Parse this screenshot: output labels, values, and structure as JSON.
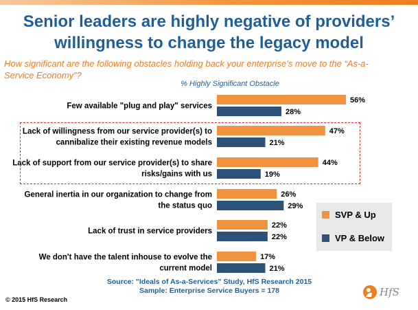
{
  "header": {
    "title_line1": "Senior leaders are highly negative of providers’",
    "title_line2": "willingness to change the legacy model",
    "question_line1": "How significant are the following obstacles holding back your enterprise’s move to the “As-a-",
    "question_line2": "Service Economy”?"
  },
  "chart_data": {
    "type": "bar",
    "orientation": "horizontal",
    "axis_title": "% Highly Significant Obstacle",
    "categories": [
      [
        "Few available \"plug and play\" services"
      ],
      [
        "Lack of willingness from our service provider(s) to",
        "cannibalize their existing revenue models"
      ],
      [
        "Lack of support from our service provider(s) to share",
        "risks/gains with us"
      ],
      [
        "General inertia in our organization to change from",
        "the status quo"
      ],
      [
        "Lack of trust in service providers"
      ],
      [
        "We don't have the talent inhouse to evolve the",
        "current model"
      ]
    ],
    "series": [
      {
        "name": "SVP & Up",
        "color": "#f0923e",
        "values": [
          56,
          47,
          44,
          26,
          22,
          17
        ],
        "labels": [
          "56%",
          "47%",
          "44%",
          "26%",
          "22%",
          "17%"
        ]
      },
      {
        "name": "VP & Below",
        "color": "#2d5278",
        "values": [
          28,
          21,
          19,
          29,
          22,
          21
        ],
        "labels": [
          "28%",
          "21%",
          "19%",
          "29%",
          "22%",
          "21%"
        ]
      }
    ],
    "xlim": [
      0,
      60
    ],
    "grid": false,
    "legend_position": "right",
    "highlighted_categories": [
      1,
      2
    ]
  },
  "legend": {
    "items": [
      {
        "label": "SVP & Up",
        "color": "#f0923e"
      },
      {
        "label": "VP & Below",
        "color": "#2d5278"
      }
    ]
  },
  "footer": {
    "source_line1": "Source: \"Ideals of As-a-Services\" Study, HfS Research 2015",
    "source_line2": "Sample: Enterprise Service Buyers = 178",
    "copyright": "© 2015 HfS Research",
    "logo_text": "HfS"
  }
}
